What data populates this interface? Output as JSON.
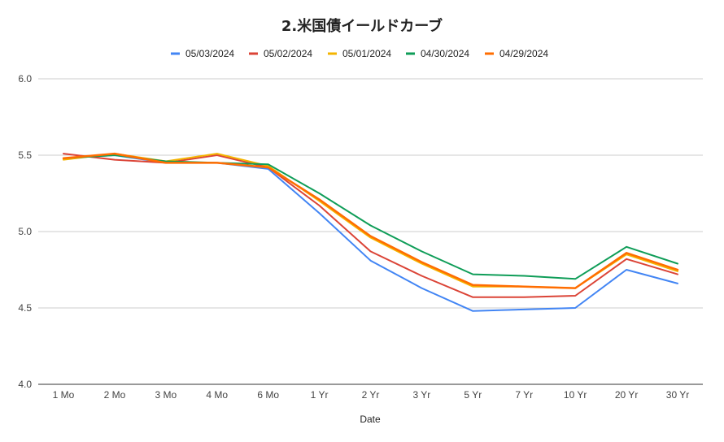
{
  "chart_data": {
    "type": "line",
    "title": "2.米国債イールドカーブ",
    "xlabel": "Date",
    "ylabel": "",
    "ylim": [
      4.0,
      6.0
    ],
    "yticks": [
      "4.0",
      "4.5",
      "5.0",
      "5.5",
      "6.0"
    ],
    "grid": true,
    "legend_position": "top",
    "categories": [
      "1 Mo",
      "2 Mo",
      "3 Mo",
      "4 Mo",
      "6 Mo",
      "1 Yr",
      "2 Yr",
      "3 Yr",
      "5 Yr",
      "7 Yr",
      "10 Yr",
      "20 Yr",
      "30 Yr"
    ],
    "series": [
      {
        "name": "05/03/2024",
        "color": "#4285f4",
        "values": [
          5.48,
          5.5,
          5.45,
          5.45,
          5.41,
          5.12,
          4.81,
          4.63,
          4.48,
          4.49,
          4.5,
          4.75,
          4.66
        ]
      },
      {
        "name": "05/02/2024",
        "color": "#db4437",
        "values": [
          5.51,
          5.47,
          5.45,
          5.5,
          5.42,
          5.17,
          4.87,
          4.71,
          4.57,
          4.57,
          4.58,
          4.82,
          4.72
        ]
      },
      {
        "name": "05/01/2024",
        "color": "#f4b400",
        "values": [
          5.47,
          5.51,
          5.46,
          5.51,
          5.43,
          5.2,
          4.96,
          4.79,
          4.64,
          4.64,
          4.63,
          4.85,
          4.74
        ]
      },
      {
        "name": "04/30/2024",
        "color": "#0f9d58",
        "values": [
          5.48,
          5.5,
          5.46,
          5.45,
          5.44,
          5.25,
          5.04,
          4.87,
          4.72,
          4.71,
          4.69,
          4.9,
          4.79
        ]
      },
      {
        "name": "04/29/2024",
        "color": "#ff6d01",
        "values": [
          5.48,
          5.51,
          5.45,
          5.45,
          5.42,
          5.21,
          4.97,
          4.8,
          4.65,
          4.64,
          4.63,
          4.86,
          4.75
        ]
      }
    ]
  }
}
